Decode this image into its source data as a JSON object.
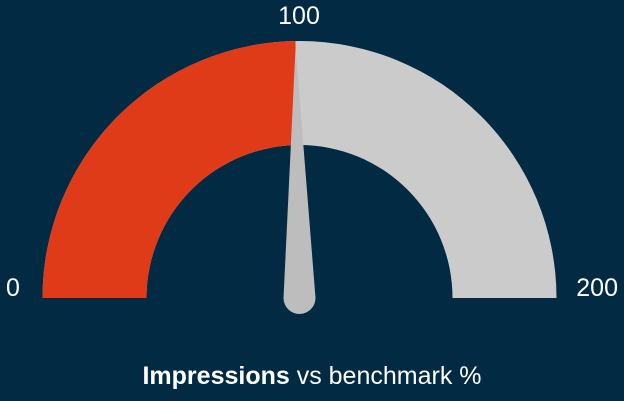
{
  "chart_data": {
    "type": "gauge",
    "min": 0,
    "max": 200,
    "value": 99,
    "tick_labels": [
      "0",
      "100",
      "200"
    ],
    "title_bold": "Impressions",
    "title_rest": " vs benchmark %",
    "colors": {
      "background": "#022a42",
      "filled": "#e03b19",
      "remaining": "#cbcbcb",
      "needle": "#bdbdbd",
      "text": "#ffffff"
    }
  }
}
